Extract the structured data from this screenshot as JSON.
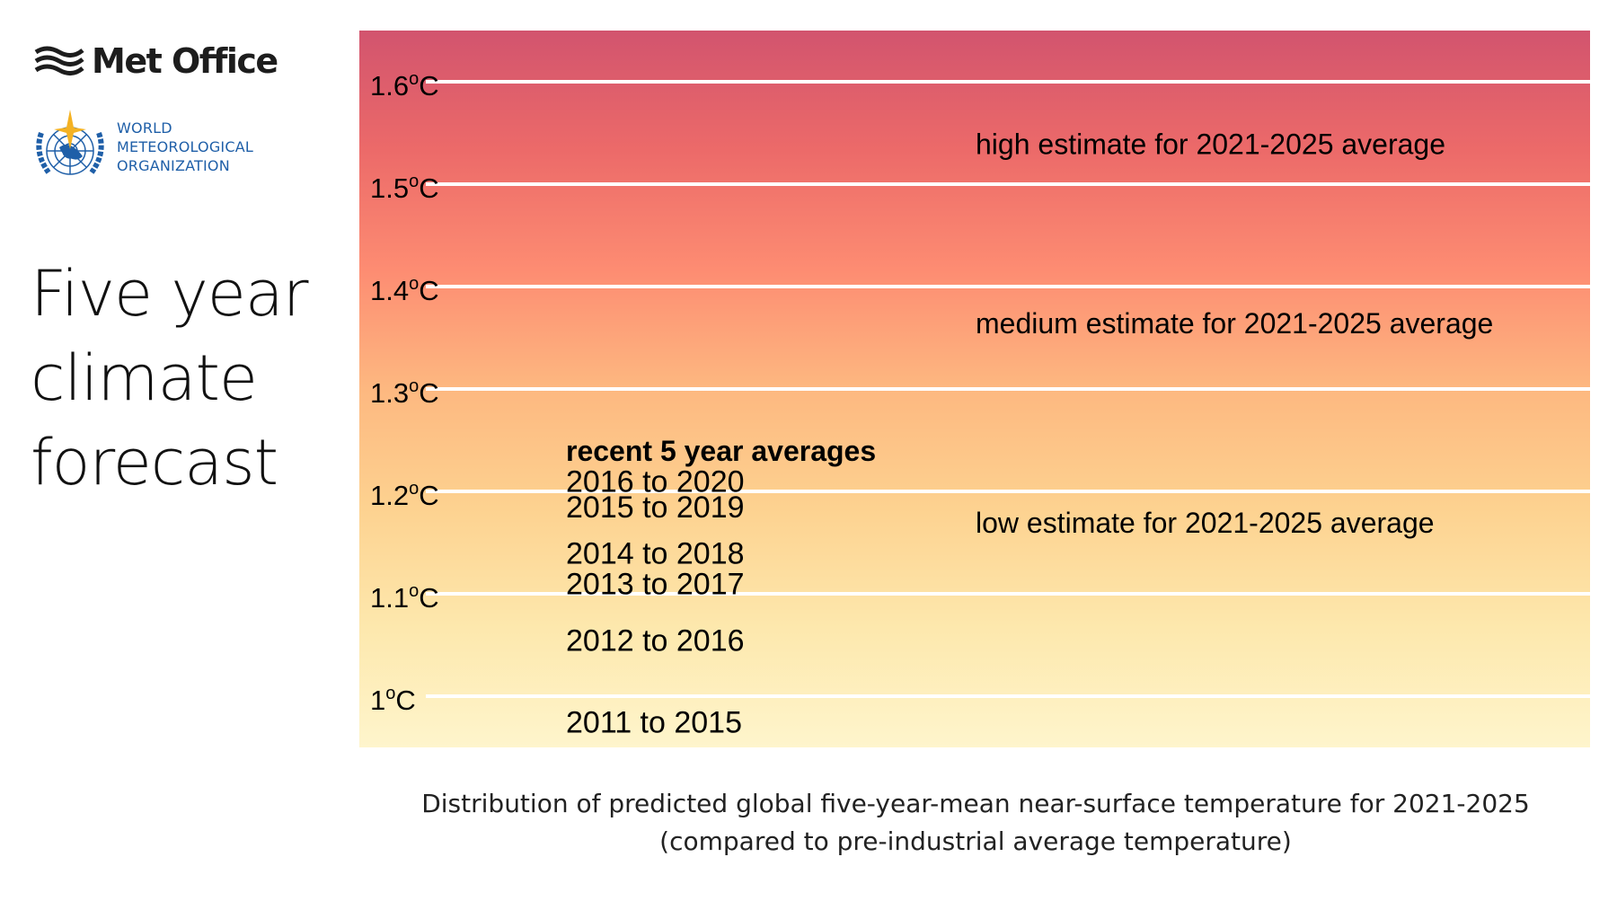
{
  "logos": {
    "met_office": "Met Office",
    "wmo_lines": [
      "WORLD",
      "METEOROLOGICAL",
      "ORGANIZATION"
    ]
  },
  "title_lines": [
    "Five year",
    "climate",
    "forecast"
  ],
  "caption": {
    "line1": "Distribution of predicted global five-year-mean near-surface temperature for 2021-2025",
    "line2": "(compared to pre-industrial average temperature)"
  },
  "colors": {
    "gradient_top": "#d2546e",
    "gradient_stops": [
      "#d2546e",
      "#ec6a69",
      "#fd8c72",
      "#fdb880",
      "#fdd290",
      "#fde8ad",
      "#fef5cc"
    ],
    "gridline": "#ffffff",
    "wmo_blue": "#1f5fa8",
    "wmo_star": "#f4b223"
  },
  "chart_data": {
    "type": "scatter",
    "ylim": [
      0.95,
      1.65
    ],
    "grid": true,
    "yticks": [
      {
        "value": 1.6,
        "label": "1.6",
        "unit": "C"
      },
      {
        "value": 1.5,
        "label": "1.5",
        "unit": "C"
      },
      {
        "value": 1.4,
        "label": "1.4",
        "unit": "C"
      },
      {
        "value": 1.3,
        "label": "1.3",
        "unit": "C"
      },
      {
        "value": 1.2,
        "label": "1.2",
        "unit": "C"
      },
      {
        "value": 1.1,
        "label": "1.1",
        "unit": "C"
      },
      {
        "value": 1.0,
        "label": "1",
        "unit": "C"
      }
    ],
    "recent_heading": "recent 5 year averages",
    "recent_averages": [
      {
        "label": "2016 to 2020",
        "value": 1.21
      },
      {
        "label": "2015 to 2019",
        "value": 1.185
      },
      {
        "label": "2014 to 2018",
        "value": 1.14
      },
      {
        "label": "2013 to 2017",
        "value": 1.11
      },
      {
        "label": "2012 to 2016",
        "value": 1.055
      },
      {
        "label": "2011 to 2015",
        "value": 0.975
      }
    ],
    "estimates": [
      {
        "label": "high estimate for 2021-2025 average",
        "value": 1.54
      },
      {
        "label": "medium estimate for 2021-2025 average",
        "value": 1.365
      },
      {
        "label": "low estimate for 2021-2025 average",
        "value": 1.17
      }
    ]
  }
}
